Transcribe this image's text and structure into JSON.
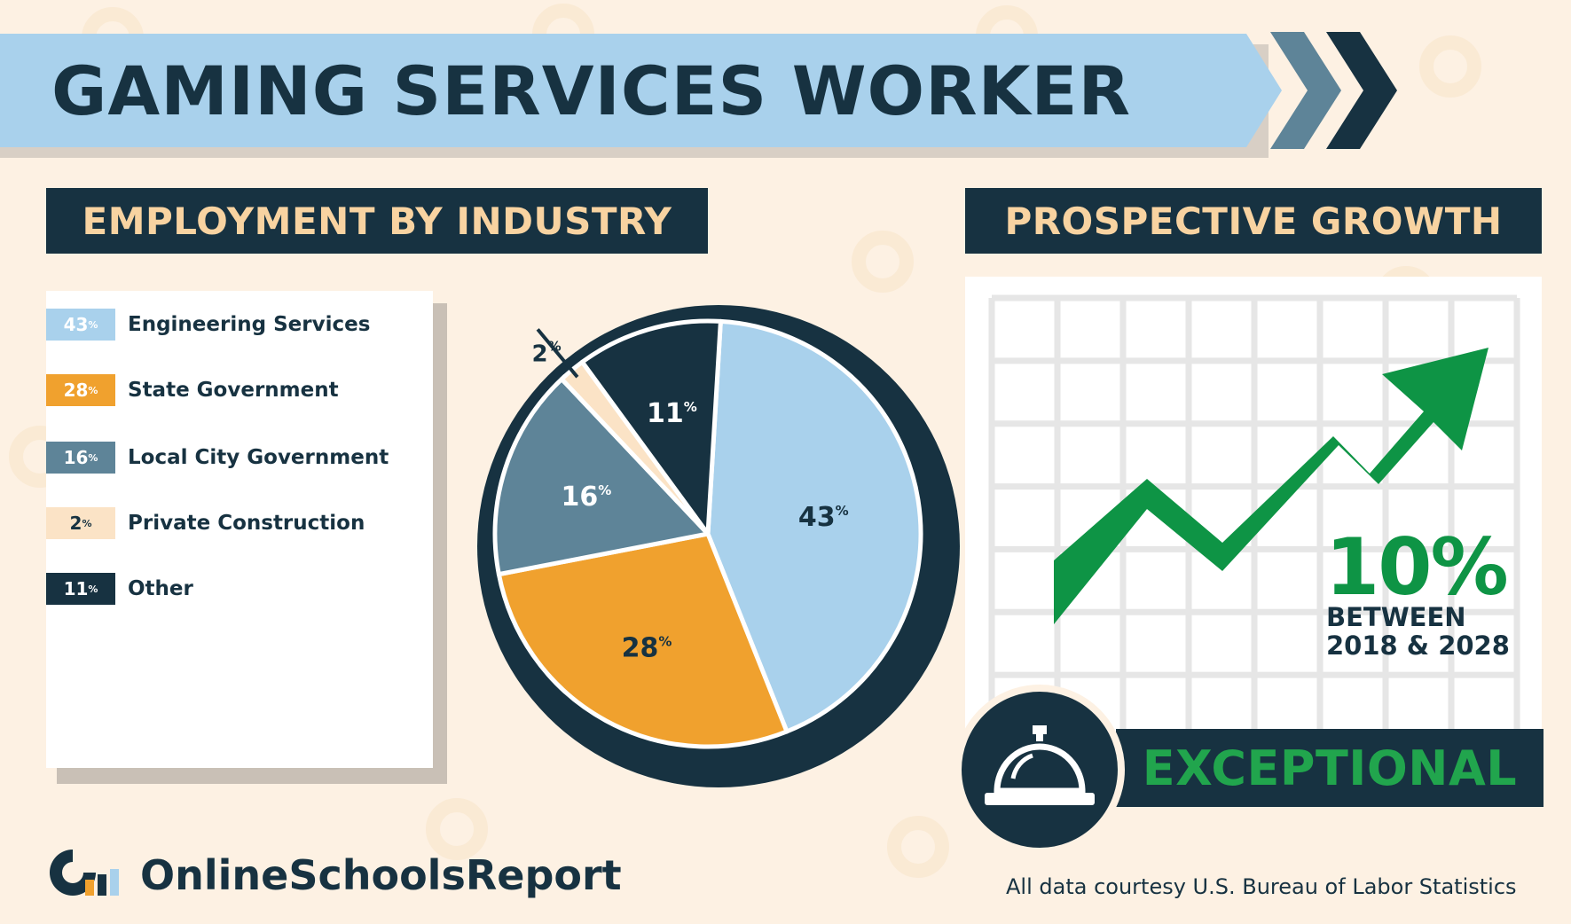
{
  "header": {
    "title": "GAMING SERVICES WORKER"
  },
  "sections": {
    "employment_title": "EMPLOYMENT BY INDUSTRY",
    "growth_title": "PROSPECTIVE GROWTH"
  },
  "colors": {
    "engineering": "#a9d1ec",
    "state": "#f0a12e",
    "local": "#5e8498",
    "private": "#fbe3c6",
    "other": "#173241",
    "growth_green": "#0e9445"
  },
  "chart_data": [
    {
      "type": "pie",
      "title": "",
      "slices": [
        {
          "label": "Engineering Services",
          "value": 43,
          "display": "43",
          "color": "#a9d1ec"
        },
        {
          "label": "State Government",
          "value": 28,
          "display": "28",
          "color": "#f0a12e"
        },
        {
          "label": "Local City Government",
          "value": 16,
          "display": "16",
          "color": "#5e8498"
        },
        {
          "label": "Private Construction",
          "value": 2,
          "display": "2",
          "color": "#fbe3c6"
        },
        {
          "label": "Other",
          "value": 11,
          "display": "11",
          "color": "#173241"
        }
      ],
      "unit": "%",
      "legend": "left"
    },
    {
      "type": "line",
      "title": "",
      "growth_percent": 10,
      "value_label": "10%",
      "period_label": "BETWEEN",
      "period_range": "2018 & 2028",
      "rating": "EXCEPTIONAL",
      "grid": true
    }
  ],
  "footer": {
    "brand": "OnlineSchoolsReport",
    "credit": "All data courtesy U.S. Bureau of Labor Statistics"
  },
  "icons": {
    "bell": "service-bell-icon",
    "logo": "onlineschoolsreport-logo-icon"
  }
}
